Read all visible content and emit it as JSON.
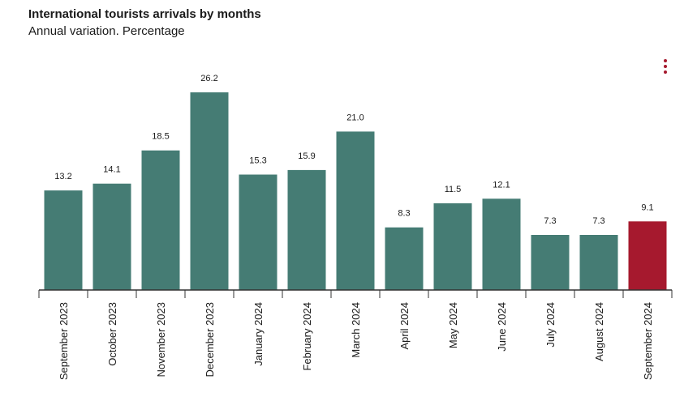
{
  "title": "International tourists arrivals by months",
  "subtitle": "Annual variation. Percentage",
  "menu_icon": "vertical-dots-icon",
  "colors": {
    "bar": "#457c74",
    "highlight": "#a6192e",
    "axis": "#333333"
  },
  "chart_data": {
    "type": "bar",
    "title": "International tourists arrivals by months",
    "subtitle": "Annual variation. Percentage",
    "xlabel": "",
    "ylabel": "",
    "ylim": [
      0,
      26.2
    ],
    "grid": false,
    "categories": [
      "September 2023",
      "October 2023",
      "November 2023",
      "December 2023",
      "January 2024",
      "February 2024",
      "March 2024",
      "April 2024",
      "May 2024",
      "June 2024",
      "July 2024",
      "August 2024",
      "September 2024"
    ],
    "values": [
      13.2,
      14.1,
      18.5,
      26.2,
      15.3,
      15.9,
      21.0,
      8.3,
      11.5,
      12.1,
      7.3,
      7.3,
      9.1
    ],
    "value_labels": [
      "13.2",
      "14.1",
      "18.5",
      "26.2",
      "15.3",
      "15.9",
      "21.0",
      "8.3",
      "11.5",
      "12.1",
      "7.3",
      "7.3",
      "9.1"
    ],
    "highlight_index": 12
  }
}
